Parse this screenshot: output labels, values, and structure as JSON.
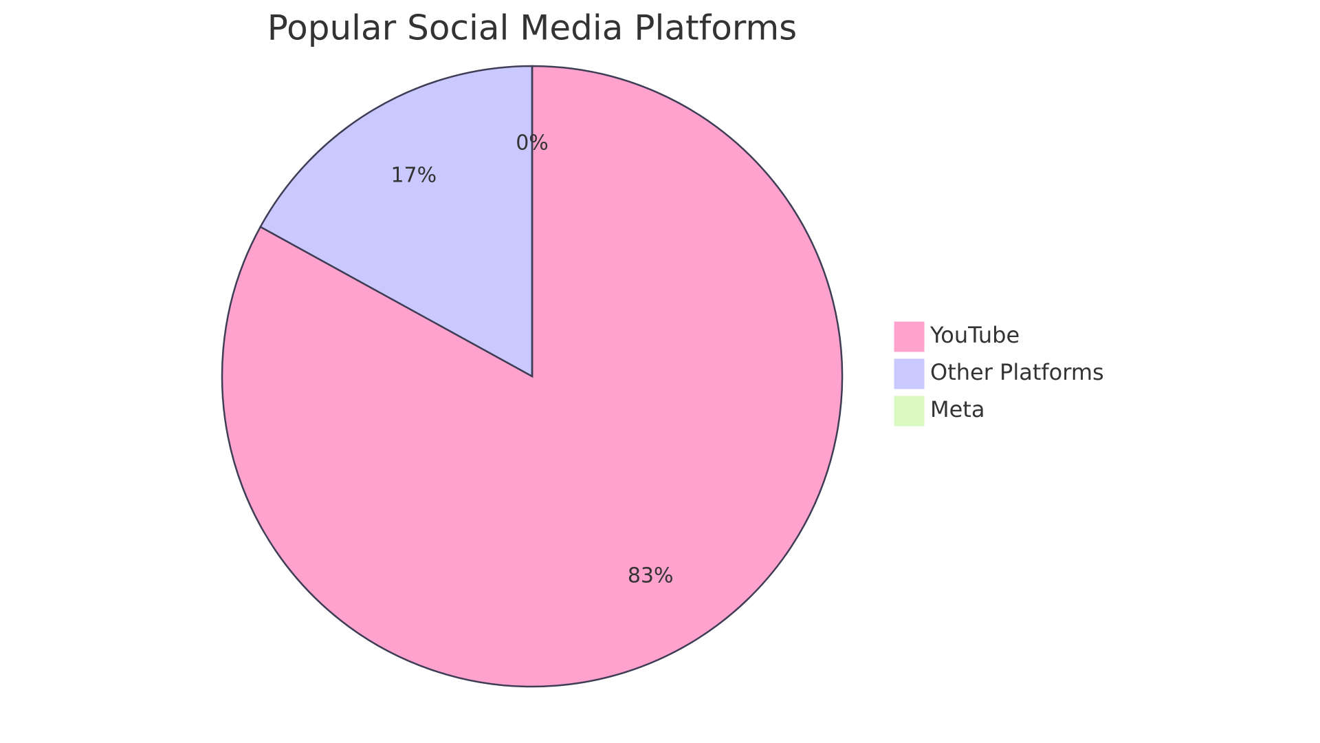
{
  "chart_data": {
    "type": "pie",
    "title": "Popular Social Media Platforms",
    "categories": [
      "YouTube",
      "Other Platforms",
      "Meta"
    ],
    "values": [
      83,
      17,
      0
    ],
    "value_labels": [
      "83%",
      "17%",
      "0%"
    ],
    "colors": [
      "#ffa3ce",
      "#c9c9ff",
      "#dbf9c3"
    ],
    "legend": "right"
  }
}
